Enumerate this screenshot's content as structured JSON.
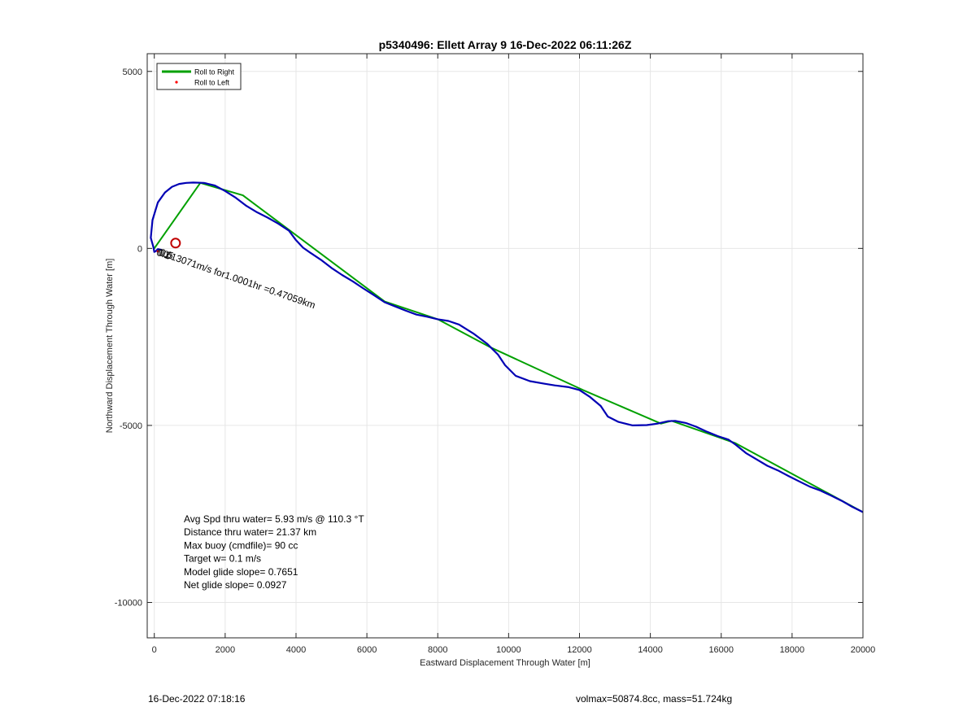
{
  "chart_data": {
    "type": "line",
    "title": "p5340496: Ellett Array 9 16-Dec-2022 06:11:26Z",
    "xlabel": "Eastward Displacement Through Water [m]",
    "ylabel": "Northward Displacement Through Water [m]",
    "xlim": [
      -200,
      20000
    ],
    "ylim": [
      -11000,
      5500
    ],
    "xticks": [
      0,
      2000,
      4000,
      6000,
      8000,
      10000,
      12000,
      14000,
      16000,
      18000,
      20000
    ],
    "yticks": [
      -10000,
      -5000,
      0,
      5000
    ],
    "grid": true,
    "legend": {
      "placement": "top-left",
      "entries": [
        {
          "label": "Roll to Right",
          "color": "#00a000",
          "style": "line"
        },
        {
          "label": "Roll to Left",
          "color": "#ff0000",
          "style": "dot"
        }
      ]
    },
    "series": [
      {
        "role": "track",
        "color": "#0000b4",
        "points": [
          [
            20000,
            -7450
          ],
          [
            19700,
            -7300
          ],
          [
            19400,
            -7130
          ],
          [
            19100,
            -6980
          ],
          [
            18800,
            -6840
          ],
          [
            18500,
            -6730
          ],
          [
            18200,
            -6580
          ],
          [
            17900,
            -6430
          ],
          [
            17600,
            -6270
          ],
          [
            17300,
            -6140
          ],
          [
            17000,
            -5960
          ],
          [
            16700,
            -5780
          ],
          [
            16400,
            -5540
          ],
          [
            16200,
            -5400
          ],
          [
            15900,
            -5300
          ],
          [
            15600,
            -5180
          ],
          [
            15300,
            -5040
          ],
          [
            15000,
            -4930
          ],
          [
            14700,
            -4870
          ],
          [
            14500,
            -4880
          ],
          [
            14200,
            -4950
          ],
          [
            13900,
            -4990
          ],
          [
            13500,
            -5000
          ],
          [
            13100,
            -4900
          ],
          [
            12800,
            -4750
          ],
          [
            12600,
            -4450
          ],
          [
            12300,
            -4200
          ],
          [
            12000,
            -4000
          ],
          [
            11700,
            -3920
          ],
          [
            11300,
            -3870
          ],
          [
            11000,
            -3820
          ],
          [
            10600,
            -3750
          ],
          [
            10200,
            -3600
          ],
          [
            9900,
            -3300
          ],
          [
            9700,
            -3000
          ],
          [
            9400,
            -2700
          ],
          [
            9000,
            -2400
          ],
          [
            8600,
            -2150
          ],
          [
            8300,
            -2050
          ],
          [
            8000,
            -2000
          ],
          [
            7700,
            -1930
          ],
          [
            7400,
            -1870
          ],
          [
            7100,
            -1760
          ],
          [
            6800,
            -1640
          ],
          [
            6500,
            -1520
          ],
          [
            6200,
            -1320
          ],
          [
            5900,
            -1130
          ],
          [
            5600,
            -930
          ],
          [
            5300,
            -750
          ],
          [
            5000,
            -550
          ],
          [
            4700,
            -320
          ],
          [
            4400,
            -120
          ],
          [
            4200,
            20
          ],
          [
            4000,
            230
          ],
          [
            3800,
            500
          ],
          [
            3500,
            700
          ],
          [
            3200,
            870
          ],
          [
            2900,
            1020
          ],
          [
            2600,
            1200
          ],
          [
            2300,
            1430
          ],
          [
            2000,
            1620
          ],
          [
            1700,
            1780
          ],
          [
            1400,
            1850
          ],
          [
            1100,
            1860
          ],
          [
            900,
            1850
          ],
          [
            700,
            1820
          ],
          [
            500,
            1740
          ],
          [
            300,
            1580
          ],
          [
            100,
            1300
          ],
          [
            -50,
            800
          ],
          [
            -100,
            300
          ],
          [
            -20,
            20
          ],
          [
            0,
            -100
          ],
          [
            40,
            -80
          ],
          [
            100,
            -20
          ],
          [
            200,
            -40
          ]
        ]
      },
      {
        "role": "roll-to-right",
        "color": "#00a000",
        "points": [
          [
            20000,
            -7450
          ],
          [
            16400,
            -5500
          ],
          [
            14600,
            -4870
          ],
          [
            14300,
            -4950
          ],
          [
            12100,
            -4000
          ],
          [
            9500,
            -2800
          ],
          [
            8000,
            -2000
          ],
          [
            6500,
            -1500
          ],
          [
            2500,
            1500
          ],
          [
            1300,
            1850
          ],
          [
            0,
            0
          ]
        ]
      }
    ],
    "markers": [
      {
        "name": "target-circle",
        "x": 600,
        "y": 150,
        "color": "#c00000"
      },
      {
        "name": "roll-left-dot",
        "x": 100,
        "y": -80,
        "color": "#ff0000"
      }
    ],
    "annotations": {
      "current_vector_label": "0.13071m/s for1.0001hr =0.47059km",
      "current_vector_angle_deg": 19,
      "overlap_labels": [
        "0.1",
        "0.0",
        "0.5"
      ],
      "stats": [
        "Avg Spd thru water=  5.93 m/s @ 110.3 °T",
        "Distance thru water= 21.37 km",
        "Max buoy (cmdfile)= 90 cc",
        "Target w= 0.1 m/s",
        "Model glide slope= 0.7651",
        "Net glide slope= 0.0927"
      ]
    }
  },
  "footer": {
    "left": "16-Dec-2022 07:18:16",
    "right": "volmax=50874.8cc, mass=51.724kg"
  }
}
